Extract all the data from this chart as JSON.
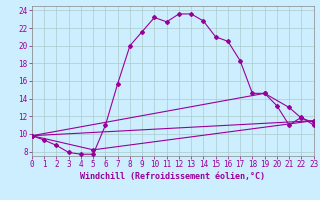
{
  "title": "",
  "xlabel": "Windchill (Refroidissement éolien,°C)",
  "background_color": "#cceeff",
  "line_color": "#990099",
  "xlim": [
    0,
    23
  ],
  "ylim": [
    7.5,
    24.5
  ],
  "yticks": [
    8,
    10,
    12,
    14,
    16,
    18,
    20,
    22,
    24
  ],
  "xticks": [
    0,
    1,
    2,
    3,
    4,
    5,
    6,
    7,
    8,
    9,
    10,
    11,
    12,
    13,
    14,
    15,
    16,
    17,
    18,
    19,
    20,
    21,
    22,
    23
  ],
  "line1_x": [
    0,
    1,
    2,
    3,
    4,
    5,
    6,
    7,
    8,
    9,
    10,
    11,
    12,
    13,
    14,
    15,
    16,
    17,
    18,
    19,
    20,
    21,
    22,
    23
  ],
  "line1_y": [
    9.8,
    9.3,
    8.7,
    7.9,
    7.7,
    7.7,
    11.0,
    15.7,
    20.0,
    21.6,
    23.2,
    22.7,
    23.6,
    23.6,
    22.8,
    21.0,
    20.5,
    18.3,
    14.6,
    14.6,
    13.2,
    11.0,
    11.9,
    11.0
  ],
  "line2_x": [
    0,
    23
  ],
  "line2_y": [
    9.8,
    11.5
  ],
  "line3_x": [
    0,
    5,
    23
  ],
  "line3_y": [
    9.8,
    8.2,
    11.5
  ],
  "line4_x": [
    0,
    19,
    21,
    22,
    23
  ],
  "line4_y": [
    9.8,
    14.6,
    13.0,
    11.8,
    11.3
  ],
  "grid_color": "#aacccc",
  "marker": "D",
  "marker_size": 2,
  "line_width": 0.8,
  "xlabel_fontsize": 6,
  "tick_fontsize": 5.5
}
